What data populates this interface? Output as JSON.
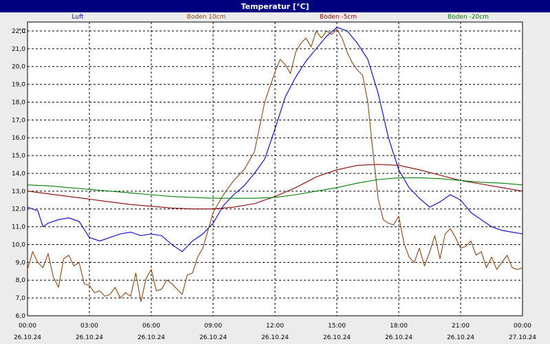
{
  "window": {
    "title": "Temperatur [°C]"
  },
  "chart_data": {
    "type": "line",
    "title": "Temperatur [°C]",
    "y_unit": "°C",
    "ylim": [
      6.0,
      22.5
    ],
    "y_ticks": [
      "6,0",
      "7,0",
      "8,0",
      "9,0",
      "10,0",
      "11,0",
      "12,0",
      "13,0",
      "14,0",
      "15,0",
      "16,0",
      "17,0",
      "18,0",
      "19,0",
      "20,0",
      "21,0",
      "22,0"
    ],
    "x_range_hours": [
      0,
      24
    ],
    "x_ticks": [
      {
        "time": "00:00",
        "date": "26.10.24"
      },
      {
        "time": "03:00",
        "date": "26.10.24"
      },
      {
        "time": "06:00",
        "date": "26.10.24"
      },
      {
        "time": "09:00",
        "date": "26.10.24"
      },
      {
        "time": "12:00",
        "date": "26.10.24"
      },
      {
        "time": "15:00",
        "date": "26.10.24"
      },
      {
        "time": "18:00",
        "date": "26.10.24"
      },
      {
        "time": "21:00",
        "date": "26.10.24"
      },
      {
        "time": "00:00",
        "date": "27.10.24"
      }
    ],
    "grid": true,
    "legend_position": "top",
    "series": [
      {
        "name": "Luft",
        "color": "#0000cc",
        "x": [
          0,
          0.5,
          0.75,
          1,
          1.5,
          2,
          2.5,
          3,
          3.5,
          4,
          4.5,
          5,
          5.5,
          6,
          6.5,
          7,
          7.5,
          8,
          8.5,
          9,
          9.5,
          10,
          10.5,
          11,
          11.5,
          12,
          12.5,
          13,
          13.5,
          14,
          14.5,
          15,
          15.5,
          16,
          16.5,
          17,
          17.5,
          18,
          18.5,
          19,
          19.5,
          20,
          20.5,
          21,
          21.5,
          22,
          22.5,
          23,
          23.5,
          24
        ],
        "values": [
          12.1,
          11.9,
          11.0,
          11.2,
          11.4,
          11.5,
          11.3,
          10.4,
          10.2,
          10.4,
          10.6,
          10.7,
          10.5,
          10.6,
          10.5,
          10.0,
          9.6,
          10.2,
          10.6,
          11.2,
          12.2,
          12.8,
          13.3,
          14.0,
          14.8,
          16.5,
          18.3,
          19.4,
          20.3,
          21.0,
          21.7,
          22.2,
          22.0,
          21.3,
          20.4,
          18.5,
          16.0,
          14.2,
          13.2,
          12.6,
          12.1,
          12.4,
          12.8,
          12.5,
          11.8,
          11.4,
          11.0,
          10.8,
          10.7,
          10.6
        ]
      },
      {
        "name": "Boden 10cm",
        "color": "#8b4513",
        "x": [
          0,
          0.25,
          0.5,
          0.75,
          1,
          1.25,
          1.5,
          1.75,
          2,
          2.25,
          2.5,
          2.75,
          3,
          3.25,
          3.5,
          3.75,
          4,
          4.25,
          4.5,
          4.75,
          5,
          5.25,
          5.5,
          5.75,
          6,
          6.25,
          6.5,
          6.75,
          7,
          7.25,
          7.5,
          7.75,
          8,
          8.25,
          8.5,
          8.75,
          9,
          9.5,
          10,
          10.5,
          11,
          11.5,
          12,
          12.25,
          12.5,
          12.75,
          13,
          13.25,
          13.5,
          13.75,
          14,
          14.25,
          14.5,
          14.75,
          15,
          15.25,
          15.5,
          15.75,
          16,
          16.25,
          16.5,
          16.75,
          17,
          17.25,
          17.5,
          17.75,
          18,
          18.25,
          18.5,
          18.75,
          19,
          19.25,
          19.5,
          19.75,
          20,
          20.25,
          20.5,
          20.75,
          21,
          21.25,
          21.5,
          21.75,
          22,
          22.25,
          22.5,
          22.75,
          23,
          23.25,
          23.5,
          23.75,
          24
        ],
        "values": [
          8.6,
          9.6,
          9.0,
          8.7,
          9.5,
          8.2,
          7.6,
          9.2,
          9.4,
          8.8,
          9.0,
          7.8,
          7.7,
          7.3,
          7.4,
          7.1,
          7.2,
          7.6,
          7.0,
          7.3,
          7.1,
          8.4,
          6.8,
          8.1,
          8.6,
          7.4,
          7.5,
          8.0,
          7.8,
          7.5,
          7.2,
          8.3,
          8.4,
          9.3,
          9.8,
          10.8,
          11.8,
          12.8,
          13.6,
          14.2,
          15.2,
          18.0,
          19.7,
          20.4,
          20.1,
          19.6,
          20.8,
          21.3,
          21.6,
          21.1,
          22.0,
          21.6,
          22.0,
          21.8,
          22.1,
          21.6,
          20.8,
          20.2,
          19.8,
          19.5,
          18.0,
          15.2,
          12.6,
          11.4,
          11.2,
          11.1,
          11.6,
          10.1,
          9.3,
          9.0,
          9.8,
          8.8,
          9.6,
          10.5,
          9.2,
          10.6,
          10.9,
          10.4,
          9.8,
          9.9,
          10.2,
          9.4,
          9.6,
          8.7,
          9.3,
          8.6,
          9.0,
          9.4,
          8.7,
          8.6,
          8.7
        ]
      },
      {
        "name": "Boden -5cm",
        "color": "#8b0000",
        "x": [
          0,
          1,
          2,
          3,
          4,
          5,
          6,
          7,
          8,
          9,
          10,
          11,
          12,
          13,
          14,
          15,
          16,
          17,
          18,
          19,
          20,
          21,
          22,
          23,
          24
        ],
        "values": [
          13.0,
          12.85,
          12.7,
          12.55,
          12.4,
          12.25,
          12.15,
          12.05,
          12.0,
          12.0,
          12.1,
          12.3,
          12.7,
          13.2,
          13.8,
          14.2,
          14.45,
          14.5,
          14.45,
          14.2,
          13.9,
          13.6,
          13.4,
          13.2,
          13.0
        ]
      },
      {
        "name": "Boden -20cm",
        "color": "#008000",
        "x": [
          0,
          1,
          2,
          3,
          4,
          5,
          6,
          7,
          8,
          9,
          10,
          11,
          12,
          13,
          14,
          15,
          16,
          17,
          18,
          19,
          20,
          21,
          22,
          23,
          24
        ],
        "values": [
          13.35,
          13.3,
          13.2,
          13.1,
          13.0,
          12.9,
          12.8,
          12.7,
          12.65,
          12.6,
          12.6,
          12.6,
          12.65,
          12.8,
          13.0,
          13.2,
          13.45,
          13.65,
          13.75,
          13.75,
          13.7,
          13.6,
          13.5,
          13.45,
          13.35
        ]
      }
    ]
  }
}
